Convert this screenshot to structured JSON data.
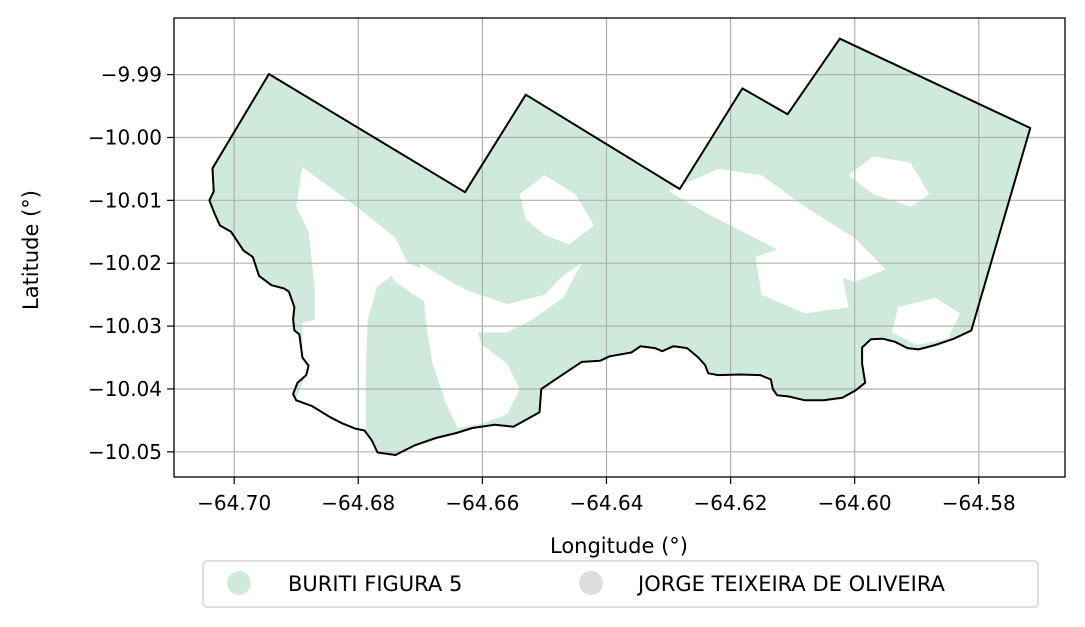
{
  "chart_data": {
    "type": "map",
    "xlabel": "Longitude (°)",
    "ylabel": "Latitude (°)",
    "xlim": [
      -64.7097,
      -64.5661
    ],
    "ylim": [
      -10.054,
      -9.981
    ],
    "x_ticks": [
      -64.7,
      -64.68,
      -64.66,
      -64.64,
      -64.62,
      -64.6,
      -64.58
    ],
    "x_tick_labels": [
      "−64.70",
      "−64.68",
      "−64.66",
      "−64.64",
      "−64.62",
      "−64.60",
      "−64.58"
    ],
    "y_ticks": [
      -9.99,
      -10.0,
      -10.01,
      -10.02,
      -10.03,
      -10.04,
      -10.05
    ],
    "y_tick_labels": [
      "−9.99",
      "−10.00",
      "−10.01",
      "−10.02",
      "−10.03",
      "−10.04",
      "−10.05"
    ],
    "grid": true,
    "legend_position": "bottom-center",
    "legend": [
      {
        "label": "BURITI FIGURA 5",
        "color": "#cfeadc"
      },
      {
        "label": "JORGE TEIXEIRA DE OLIVEIRA",
        "color": "#dddddd"
      }
    ],
    "boundary": [
      [
        -64.7035,
        -10.0049
      ],
      [
        -64.6944,
        -9.9899
      ],
      [
        -64.6628,
        -10.0087
      ],
      [
        -64.653,
        -9.9932
      ],
      [
        -64.6282,
        -10.0082
      ],
      [
        -64.6181,
        -9.9922
      ],
      [
        -64.6108,
        -9.9963
      ],
      [
        -64.6024,
        -9.9843
      ],
      [
        -64.5717,
        -9.9985
      ],
      [
        -64.5812,
        -10.0307
      ],
      [
        -64.584,
        -10.032
      ],
      [
        -64.587,
        -10.033
      ],
      [
        -64.5897,
        -10.0337
      ],
      [
        -64.5915,
        -10.0335
      ],
      [
        -64.5935,
        -10.0325
      ],
      [
        -64.5955,
        -10.032
      ],
      [
        -64.5974,
        -10.0321
      ],
      [
        -64.5988,
        -10.0334
      ],
      [
        -64.5988,
        -10.036
      ],
      [
        -64.5983,
        -10.039
      ],
      [
        -64.5998,
        -10.0402
      ],
      [
        -64.602,
        -10.0414
      ],
      [
        -64.605,
        -10.0418
      ],
      [
        -64.608,
        -10.0418
      ],
      [
        -64.6106,
        -10.0412
      ],
      [
        -64.6125,
        -10.041
      ],
      [
        -64.6132,
        -10.04
      ],
      [
        -64.6135,
        -10.0385
      ],
      [
        -64.6152,
        -10.0378
      ],
      [
        -64.6185,
        -10.0377
      ],
      [
        -64.622,
        -10.0378
      ],
      [
        -64.6236,
        -10.0375
      ],
      [
        -64.6241,
        -10.0362
      ],
      [
        -64.6252,
        -10.035
      ],
      [
        -64.627,
        -10.0335
      ],
      [
        -64.6292,
        -10.0332
      ],
      [
        -64.631,
        -10.034
      ],
      [
        -64.6322,
        -10.0335
      ],
      [
        -64.6345,
        -10.0332
      ],
      [
        -64.636,
        -10.0342
      ],
      [
        -64.6395,
        -10.0348
      ],
      [
        -64.641,
        -10.0355
      ],
      [
        -64.644,
        -10.0357
      ],
      [
        -64.6475,
        -10.038
      ],
      [
        -64.6505,
        -10.04
      ],
      [
        -64.6508,
        -10.0437
      ],
      [
        -64.6526,
        -10.0447
      ],
      [
        -64.655,
        -10.046
      ],
      [
        -64.658,
        -10.0457
      ],
      [
        -64.6616,
        -10.0462
      ],
      [
        -64.6642,
        -10.047
      ],
      [
        -64.6675,
        -10.0478
      ],
      [
        -64.671,
        -10.049
      ],
      [
        -64.674,
        -10.0505
      ],
      [
        -64.6769,
        -10.0501
      ],
      [
        -64.6778,
        -10.0482
      ],
      [
        -64.679,
        -10.0466
      ],
      [
        -64.6805,
        -10.0463
      ],
      [
        -64.6825,
        -10.0455
      ],
      [
        -64.6845,
        -10.0445
      ],
      [
        -64.6875,
        -10.0427
      ],
      [
        -64.69,
        -10.0418
      ],
      [
        -64.6905,
        -10.0408
      ],
      [
        -64.6898,
        -10.039
      ],
      [
        -64.6884,
        -10.0378
      ],
      [
        -64.688,
        -10.0363
      ],
      [
        -64.689,
        -10.035
      ],
      [
        -64.6892,
        -10.0335
      ],
      [
        -64.6895,
        -10.0313
      ],
      [
        -64.6903,
        -10.0307
      ],
      [
        -64.6905,
        -10.0289
      ],
      [
        -64.6903,
        -10.027
      ],
      [
        -64.6908,
        -10.0256
      ],
      [
        -64.6912,
        -10.0245
      ],
      [
        -64.692,
        -10.024
      ],
      [
        -64.694,
        -10.0235
      ],
      [
        -64.696,
        -10.022
      ],
      [
        -64.697,
        -10.019
      ],
      [
        -64.6985,
        -10.018
      ],
      [
        -64.7005,
        -10.015
      ],
      [
        -64.7023,
        -10.014
      ],
      [
        -64.7032,
        -10.012
      ],
      [
        -64.704,
        -10.01
      ],
      [
        -64.7033,
        -10.0086
      ],
      [
        -64.7035,
        -10.0049
      ]
    ],
    "uncovered_areas": [
      [
        [
          -64.689,
          -10.0047
        ],
        [
          -64.679,
          -10.012
        ],
        [
          -64.674,
          -10.016
        ],
        [
          -64.672,
          -10.02
        ],
        [
          -64.677,
          -10.0238
        ],
        [
          -64.6785,
          -10.029
        ],
        [
          -64.6788,
          -10.038
        ],
        [
          -64.6788,
          -10.0465
        ],
        [
          -64.681,
          -10.0462
        ],
        [
          -64.687,
          -10.043
        ],
        [
          -64.69,
          -10.0415
        ],
        [
          -64.6885,
          -10.038
        ],
        [
          -64.689,
          -10.034
        ],
        [
          -64.689,
          -10.0295
        ],
        [
          -64.687,
          -10.029
        ],
        [
          -64.687,
          -10.024
        ],
        [
          -64.688,
          -10.015
        ],
        [
          -64.69,
          -10.011
        ]
      ],
      [
        [
          -64.677,
          -10.018
        ],
        [
          -64.672,
          -10.02
        ],
        [
          -64.668,
          -10.0215
        ],
        [
          -64.662,
          -10.0245
        ],
        [
          -64.656,
          -10.0265
        ],
        [
          -64.65,
          -10.025
        ],
        [
          -64.647,
          -10.022
        ],
        [
          -64.644,
          -10.02
        ],
        [
          -64.647,
          -10.0255
        ],
        [
          -64.652,
          -10.029
        ],
        [
          -64.656,
          -10.031
        ],
        [
          -64.662,
          -10.031
        ],
        [
          -64.668,
          -10.027
        ],
        [
          -64.674,
          -10.023
        ]
      ],
      [
        [
          -64.67,
          -10.02
        ],
        [
          -64.665,
          -10.023
        ],
        [
          -64.662,
          -10.028
        ],
        [
          -64.66,
          -10.033
        ],
        [
          -64.656,
          -10.036
        ],
        [
          -64.654,
          -10.04
        ],
        [
          -64.656,
          -10.044
        ],
        [
          -64.66,
          -10.0455
        ],
        [
          -64.664,
          -10.0462
        ],
        [
          -64.666,
          -10.042
        ],
        [
          -64.668,
          -10.036
        ],
        [
          -64.669,
          -10.03
        ]
      ],
      [
        [
          -64.654,
          -10.009
        ],
        [
          -64.65,
          -10.006
        ],
        [
          -64.645,
          -10.009
        ],
        [
          -64.642,
          -10.014
        ],
        [
          -64.646,
          -10.017
        ],
        [
          -64.65,
          -10.0155
        ],
        [
          -64.653,
          -10.013
        ]
      ],
      [
        [
          -64.63,
          -10.0085
        ],
        [
          -64.622,
          -10.005
        ],
        [
          -64.615,
          -10.006
        ],
        [
          -64.608,
          -10.011
        ],
        [
          -64.6,
          -10.016
        ],
        [
          -64.595,
          -10.021
        ],
        [
          -64.6,
          -10.023
        ],
        [
          -64.608,
          -10.02
        ],
        [
          -64.616,
          -10.016
        ],
        [
          -64.624,
          -10.012
        ]
      ],
      [
        [
          -64.601,
          -10.006
        ],
        [
          -64.597,
          -10.003
        ],
        [
          -64.591,
          -10.004
        ],
        [
          -64.588,
          -10.009
        ],
        [
          -64.591,
          -10.011
        ],
        [
          -64.597,
          -10.009
        ]
      ],
      [
        [
          -64.616,
          -10.019
        ],
        [
          -64.61,
          -10.017
        ],
        [
          -64.602,
          -10.022
        ],
        [
          -64.601,
          -10.027
        ],
        [
          -64.608,
          -10.028
        ],
        [
          -64.615,
          -10.025
        ]
      ],
      [
        [
          -64.593,
          -10.027
        ],
        [
          -64.587,
          -10.0255
        ],
        [
          -64.583,
          -10.028
        ],
        [
          -64.585,
          -10.032
        ],
        [
          -64.59,
          -10.033
        ],
        [
          -64.594,
          -10.031
        ]
      ]
    ]
  }
}
